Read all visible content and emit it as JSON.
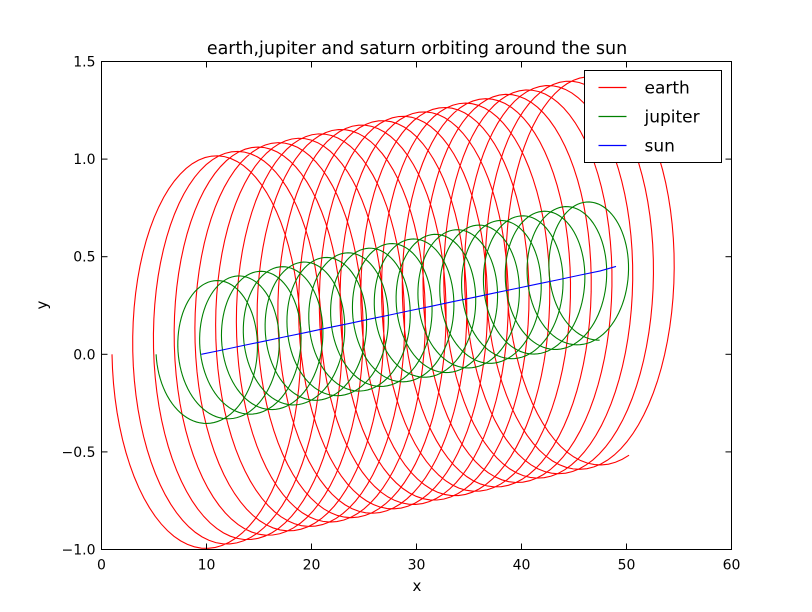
{
  "chart_data": {
    "type": "line",
    "title": "earth,jupiter and saturn orbiting around the sun",
    "xlabel": "x",
    "ylabel": "y",
    "xlim": [
      0,
      60
    ],
    "ylim": [
      -1.0,
      1.5
    ],
    "xticks": [
      {
        "value": 0,
        "label": "0"
      },
      {
        "value": 10,
        "label": "10"
      },
      {
        "value": 20,
        "label": "20"
      },
      {
        "value": 30,
        "label": "30"
      },
      {
        "value": 40,
        "label": "40"
      },
      {
        "value": 50,
        "label": "50"
      },
      {
        "value": 60,
        "label": "60"
      }
    ],
    "yticks": [
      {
        "value": -1.0,
        "label": "−1.0"
      },
      {
        "value": -0.5,
        "label": "−0.5"
      },
      {
        "value": 0.0,
        "label": "0.0"
      },
      {
        "value": 0.5,
        "label": "0.5"
      },
      {
        "value": 1.0,
        "label": "1.0"
      },
      {
        "value": 1.5,
        "label": "1.5"
      }
    ],
    "grid": false,
    "legend_position": "top-right",
    "series": [
      {
        "name": "earth",
        "color": "#ff0000",
        "shape": "orbit",
        "sun_start": [
          9.5,
          0.0
        ],
        "sun_end": [
          49.0,
          0.45
        ],
        "radius_x": 8.5,
        "radius_y": 1.0,
        "revolutions": 20,
        "turns_reached": 19.3
      },
      {
        "name": "jupiter",
        "color": "#008000",
        "shape": "orbit",
        "sun_start": [
          9.5,
          0.0
        ],
        "sun_end": [
          49.0,
          0.45
        ],
        "radius_x": 4.3,
        "radius_y": 0.36,
        "revolutions": 19,
        "turns_reached": 18.25
      },
      {
        "name": "sun",
        "color": "#0000ff",
        "shape": "path",
        "x": [
          9.5,
          11.5,
          13.5,
          15.5,
          17.5,
          19.5,
          21.5,
          23.5,
          25.5,
          27.5,
          29.5,
          31.5,
          33.5,
          35.5,
          37.5,
          39.5,
          41.5,
          43.5,
          45.5,
          47.5,
          49.0
        ],
        "y": [
          0.0,
          0.022,
          0.045,
          0.067,
          0.09,
          0.112,
          0.135,
          0.157,
          0.18,
          0.202,
          0.225,
          0.247,
          0.27,
          0.292,
          0.315,
          0.337,
          0.36,
          0.382,
          0.405,
          0.427,
          0.45
        ]
      }
    ]
  }
}
